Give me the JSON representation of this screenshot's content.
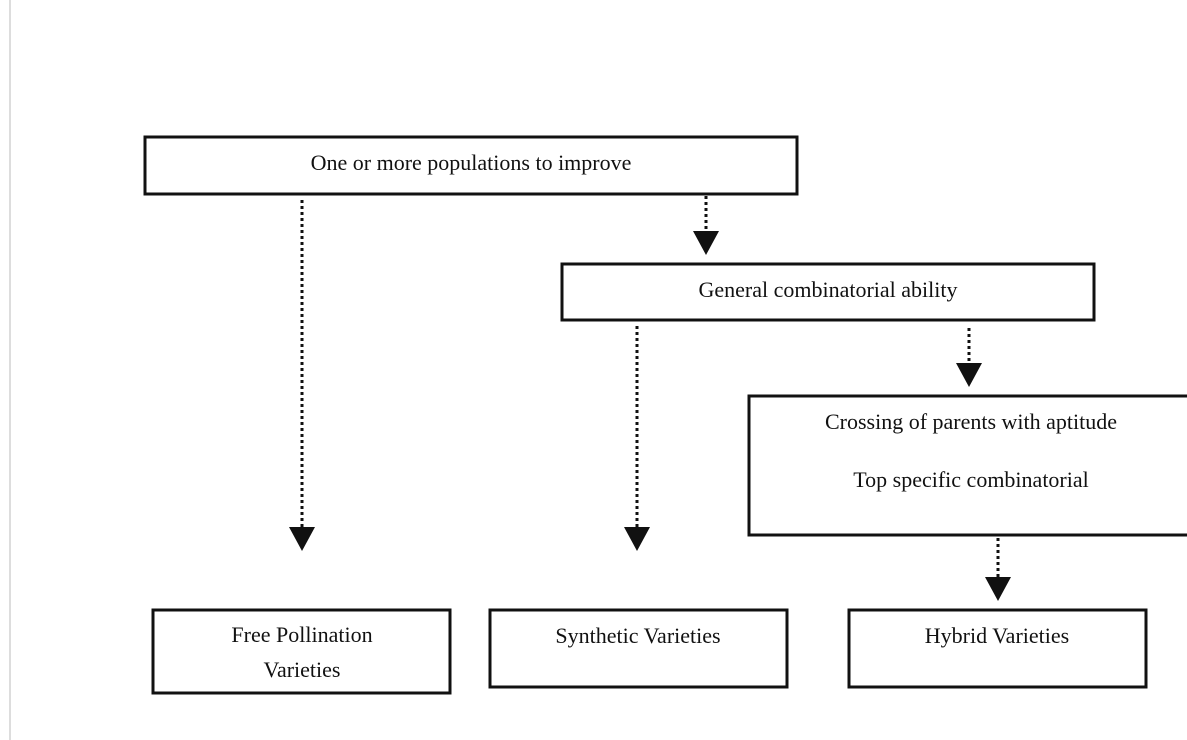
{
  "nodes": [
    {
      "label": "One or more populations to improve"
    },
    {
      "label": "General combinatorial ability"
    },
    {
      "lines": [
        "Crossing of parents with aptitude",
        "Top specific combinatorial"
      ]
    },
    {
      "lines": [
        "Free Pollination",
        "Varieties"
      ]
    },
    {
      "label": "Synthetic Varieties"
    },
    {
      "label": "Hybrid Varieties"
    }
  ]
}
